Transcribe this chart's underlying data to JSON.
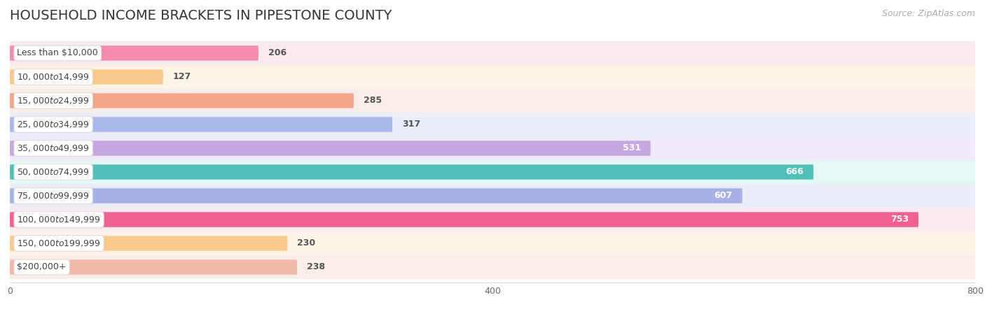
{
  "title": "HOUSEHOLD INCOME BRACKETS IN PIPESTONE COUNTY",
  "source": "Source: ZipAtlas.com",
  "categories": [
    "Less than $10,000",
    "$10,000 to $14,999",
    "$15,000 to $24,999",
    "$25,000 to $34,999",
    "$35,000 to $49,999",
    "$50,000 to $74,999",
    "$75,000 to $99,999",
    "$100,000 to $149,999",
    "$150,000 to $199,999",
    "$200,000+"
  ],
  "values": [
    206,
    127,
    285,
    317,
    531,
    666,
    607,
    753,
    230,
    238
  ],
  "bar_colors": [
    "#f48caf",
    "#f9c88a",
    "#f2a58a",
    "#a8b8e8",
    "#c8a8e0",
    "#52c0b8",
    "#a8b0e8",
    "#f06090",
    "#f9c88a",
    "#f2b8a8"
  ],
  "bar_bg_colors": [
    "#faeaf0",
    "#fdf4e8",
    "#faece8",
    "#eaedf8",
    "#f0eaf8",
    "#e4f8f5",
    "#eaedf8",
    "#faeaf0",
    "#fdf4e8",
    "#faece8"
  ],
  "row_bg_color": "#f0f0f0",
  "xlim": [
    0,
    800
  ],
  "xticks": [
    0,
    400,
    800
  ],
  "label_color_threshold": 450,
  "background_color": "#ffffff",
  "title_fontsize": 14,
  "source_fontsize": 9,
  "bar_fontsize": 9,
  "cat_fontsize": 9
}
